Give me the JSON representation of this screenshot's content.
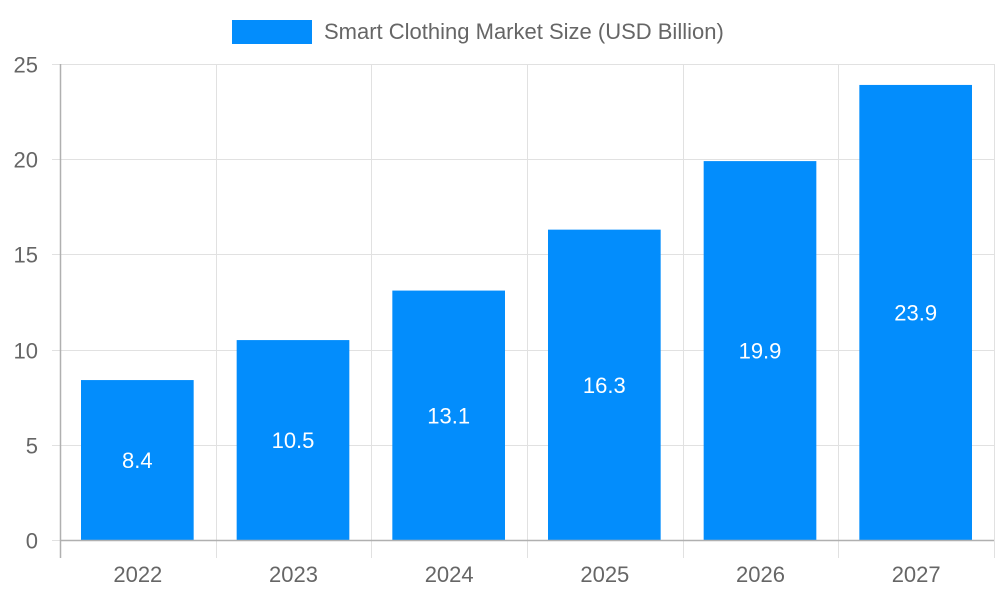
{
  "chart_data": {
    "type": "bar",
    "title": "",
    "legend": [
      "Smart Clothing Market Size (USD Billion)"
    ],
    "legend_position": "top",
    "categories": [
      "2022",
      "2023",
      "2024",
      "2025",
      "2026",
      "2027"
    ],
    "series": [
      {
        "name": "Smart Clothing Market Size (USD Billion)",
        "values": [
          8.4,
          10.5,
          13.1,
          16.3,
          19.9,
          23.9
        ],
        "color": "#038dfc"
      }
    ],
    "data_labels": [
      "8.4",
      "10.5",
      "13.1",
      "16.3",
      "19.9",
      "23.9"
    ],
    "xlabel": "",
    "ylabel": "",
    "ylim": [
      0,
      25
    ],
    "yticks": [
      "0",
      "5",
      "10",
      "15",
      "20",
      "25"
    ],
    "grid": true
  },
  "legend": {
    "label": "Smart Clothing Market Size (USD Billion)",
    "color": "#038dfc"
  }
}
